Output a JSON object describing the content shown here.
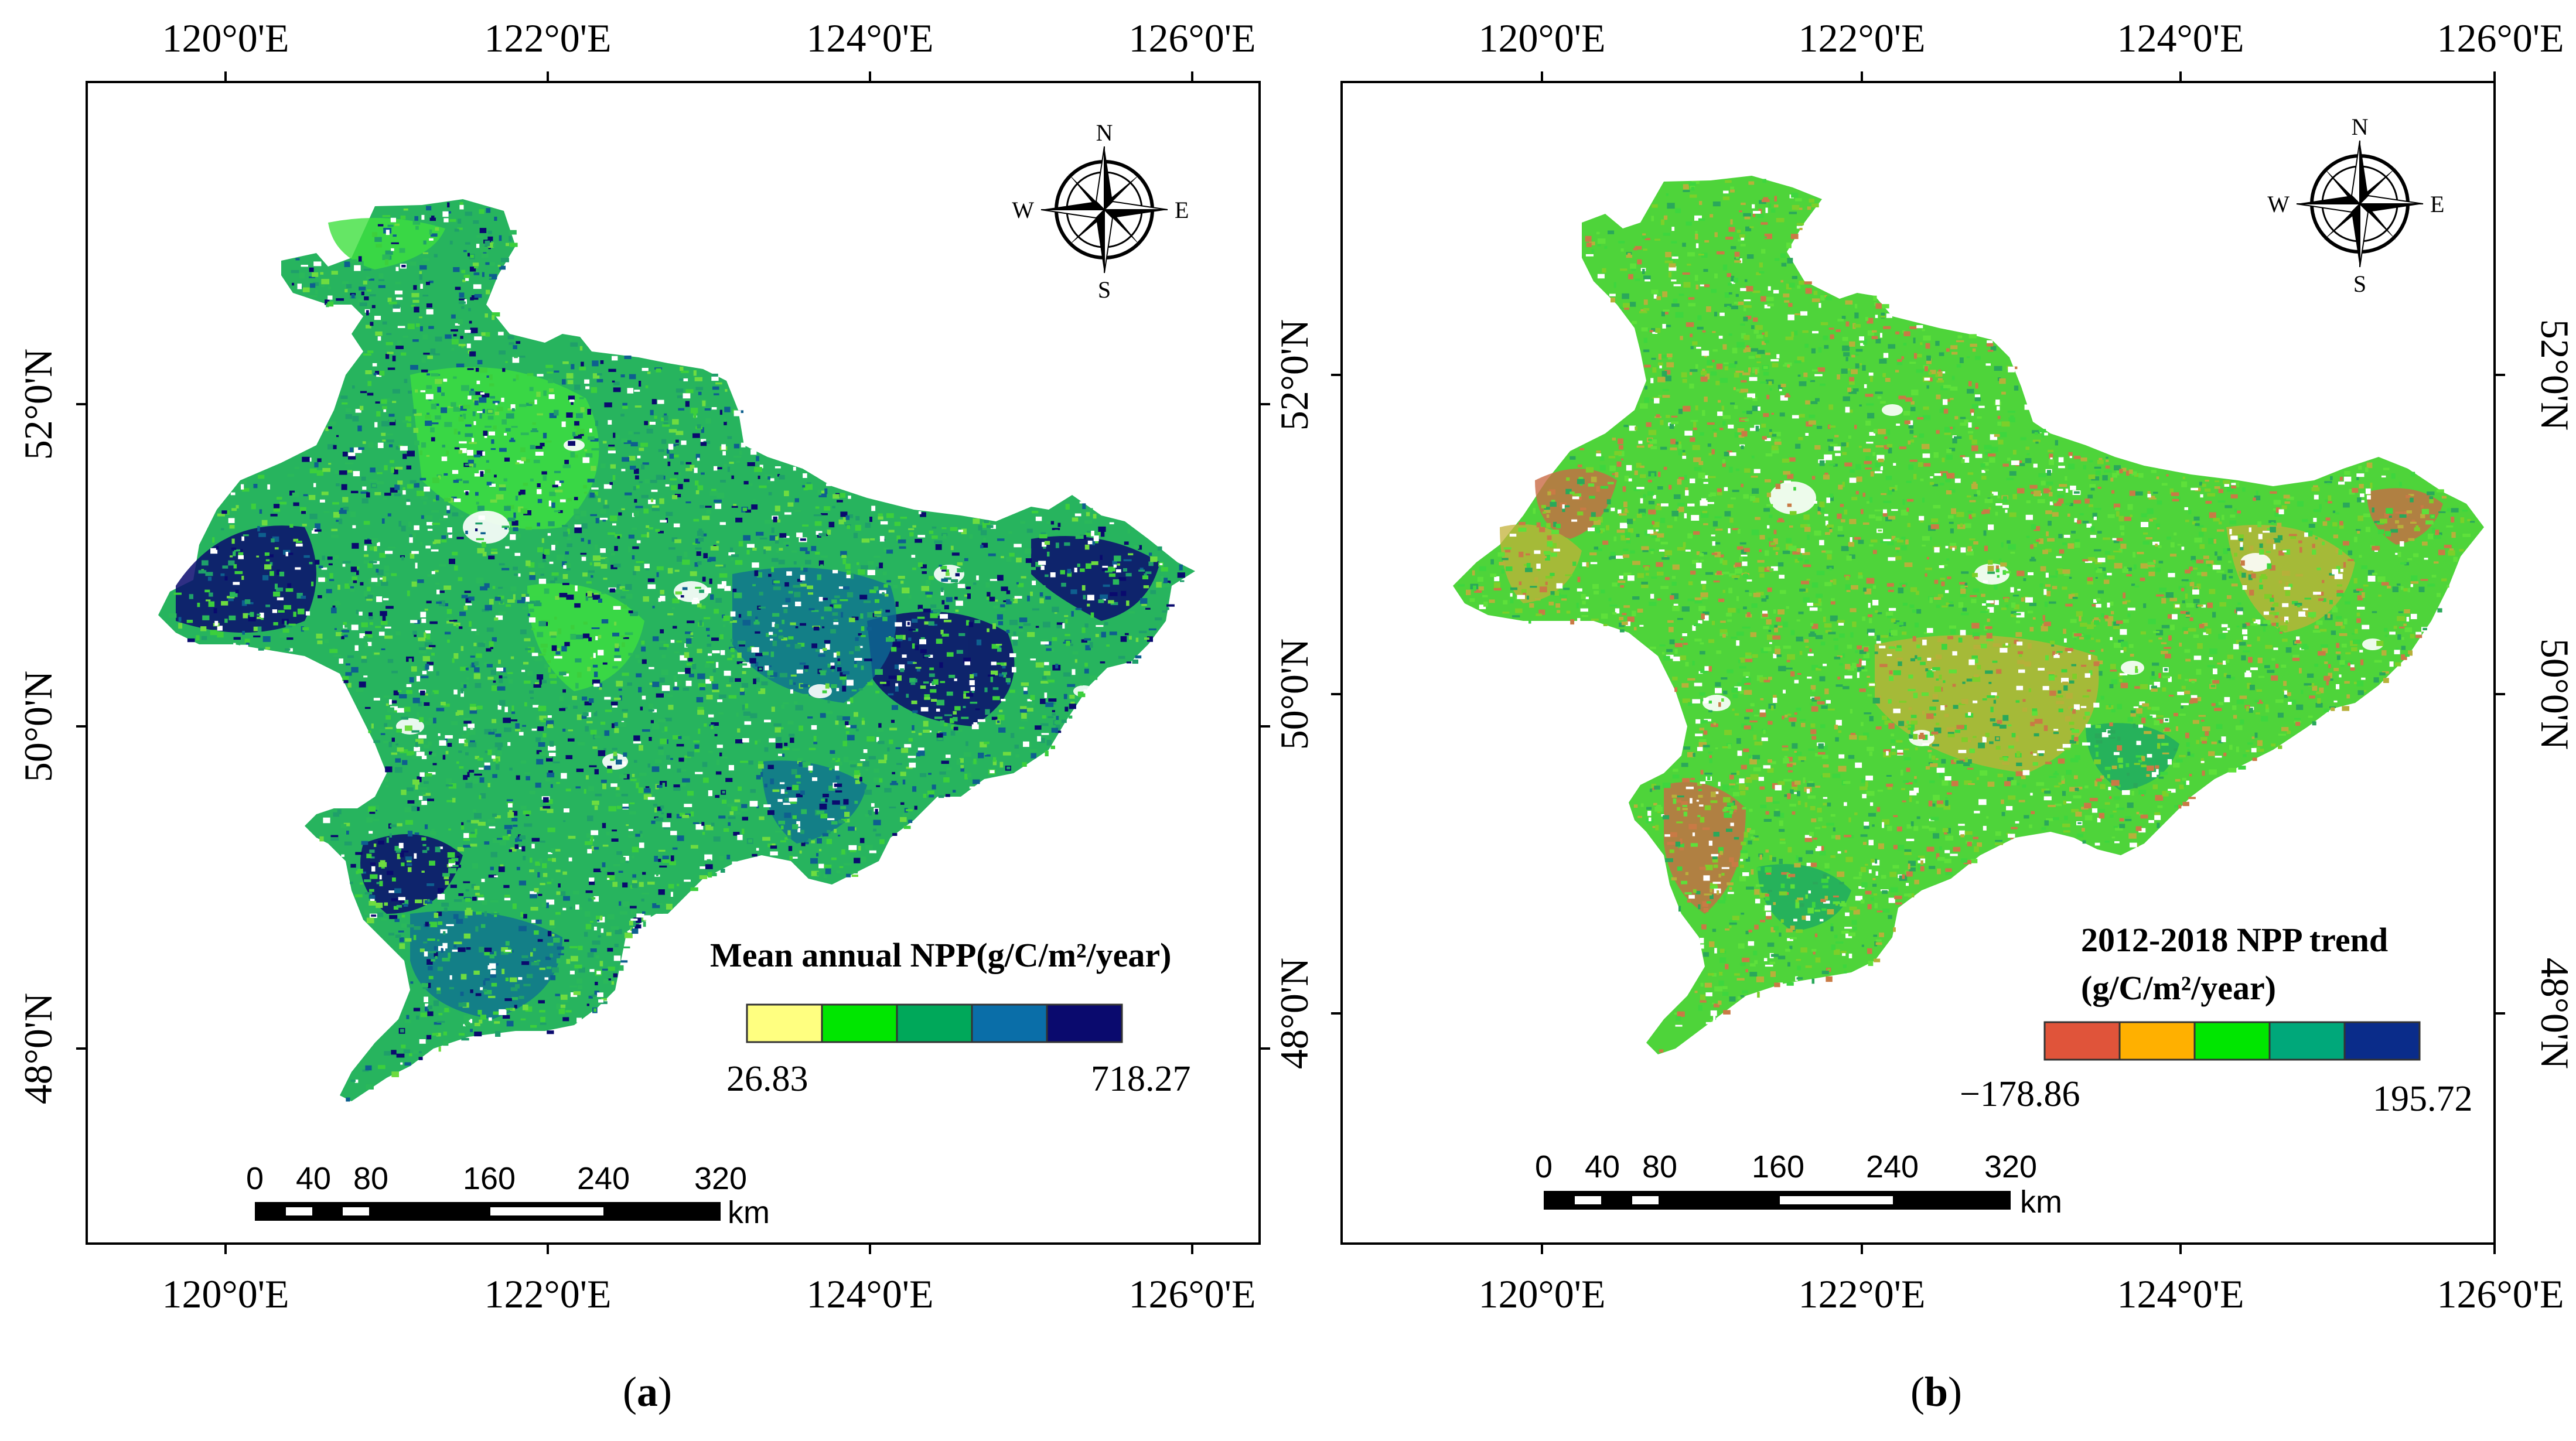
{
  "panels": [
    {
      "id": "a",
      "caption_letter": "a",
      "lon_ticks": [
        "120°0'E",
        "122°0'E",
        "124°0'E",
        "126°0'E"
      ],
      "lat_ticks": [
        "52°0'N",
        "50°0'N",
        "48°0'N"
      ],
      "legend": {
        "title_line1": "Mean annual NPP(g/C/m²/year)",
        "title_line2": "",
        "min": "26.83",
        "max": "718.27",
        "colors": [
          "#ffff80",
          "#00e600",
          "#00a85a",
          "#0a6ea8",
          "#0a0a6e"
        ]
      },
      "compass": {
        "n": "N",
        "s": "S",
        "e": "E",
        "w": "W"
      },
      "scalebar": {
        "labels": [
          "0",
          "40",
          "80",
          "160",
          "240",
          "320"
        ],
        "unit": "km"
      },
      "map_colors": [
        "#2ab85a",
        "#3ccf3c",
        "#1f9f6a",
        "#0e5f8f",
        "#0a0a6e",
        "#6edc40"
      ]
    },
    {
      "id": "b",
      "caption_letter": "b",
      "lon_ticks": [
        "120°0'E",
        "122°0'E",
        "124°0'E",
        "126°0'E"
      ],
      "lat_ticks": [
        "52°0'N",
        "50°0'N",
        "48°0'N"
      ],
      "legend": {
        "title_line1": "2012-2018 NPP trend",
        "title_line2": "(g/C/m²/year)",
        "min": "−178.86",
        "max": "195.72",
        "colors": [
          "#e0543a",
          "#ffb000",
          "#00e600",
          "#00a87a",
          "#0a2c8a"
        ]
      },
      "compass": {
        "n": "N",
        "s": "S",
        "e": "E",
        "w": "W"
      },
      "scalebar": {
        "labels": [
          "0",
          "40",
          "80",
          "160",
          "240",
          "320"
        ],
        "unit": "km"
      },
      "map_colors": [
        "#3ed63e",
        "#7ccf2a",
        "#b7b03a",
        "#c97a45",
        "#2aa85a",
        "#5ee03a"
      ]
    }
  ]
}
